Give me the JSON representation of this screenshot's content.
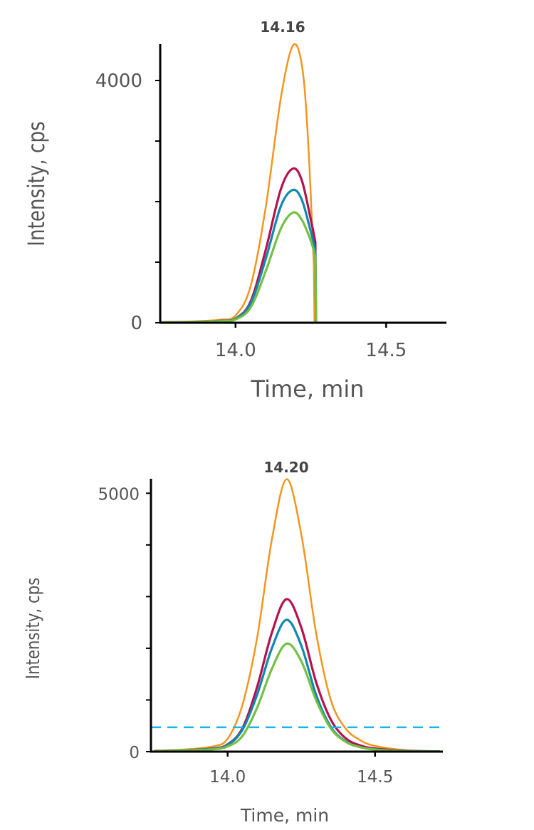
{
  "colors": {
    "orange": "#f7941d",
    "magenta": "#b5124f",
    "blue": "#0f88b0",
    "green": "#74c043",
    "threshold": "#1ab3e6",
    "axis": "#000000",
    "text": "#555555"
  },
  "chart_data": [
    {
      "type": "line",
      "annotation": "14.16",
      "xlabel": "Time, min",
      "ylabel": "Intensity, cps",
      "xlim": [
        13.75,
        14.7
      ],
      "ylim": [
        0,
        4600
      ],
      "xticks": [
        {
          "value": 14.0,
          "label": "14.0"
        },
        {
          "value": 14.5,
          "label": "14.5"
        }
      ],
      "yticks": [
        {
          "value": 0,
          "label": "0"
        },
        {
          "value": 1000,
          "label": ""
        },
        {
          "value": 2000,
          "label": ""
        },
        {
          "value": 3000,
          "label": ""
        },
        {
          "value": 4000,
          "label": "4000"
        }
      ],
      "grid": false,
      "series": [
        {
          "color": "orange",
          "x": [
            13.75,
            13.85,
            13.95,
            14.0,
            14.05,
            14.1,
            14.15,
            14.19,
            14.22,
            14.24,
            14.26,
            14.262
          ],
          "y": [
            10,
            20,
            50,
            120,
            600,
            1900,
            3700,
            4575,
            4260,
            3090,
            940,
            0
          ]
        },
        {
          "color": "magenta",
          "x": [
            13.75,
            13.85,
            13.95,
            14.0,
            14.05,
            14.1,
            14.15,
            14.19,
            14.22,
            14.25,
            14.265,
            14.267
          ],
          "y": [
            5,
            10,
            30,
            70,
            350,
            1200,
            2200,
            2545,
            2350,
            1700,
            1330,
            0
          ]
        },
        {
          "color": "blue",
          "x": [
            13.75,
            13.85,
            13.95,
            14.0,
            14.05,
            14.1,
            14.15,
            14.19,
            14.22,
            14.25,
            14.265,
            14.267
          ],
          "y": [
            5,
            10,
            30,
            65,
            320,
            1050,
            1920,
            2193,
            2030,
            1500,
            1180,
            0
          ]
        },
        {
          "color": "green",
          "x": [
            13.75,
            13.85,
            13.95,
            14.0,
            14.05,
            14.1,
            14.15,
            14.19,
            14.22,
            14.25,
            14.265,
            14.267
          ],
          "y": [
            5,
            10,
            25,
            55,
            250,
            850,
            1550,
            1818,
            1700,
            1350,
            1090,
            0
          ]
        }
      ]
    },
    {
      "type": "line",
      "annotation": "14.20",
      "xlabel": "Time, min",
      "ylabel": "Intensity, cps",
      "xlim": [
        13.74,
        14.73
      ],
      "ylim": [
        0,
        5280
      ],
      "xticks": [
        {
          "value": 14.0,
          "label": "14.0"
        },
        {
          "value": 14.5,
          "label": "14.5"
        }
      ],
      "yticks": [
        {
          "value": 0,
          "label": "0"
        },
        {
          "value": 1000,
          "label": ""
        },
        {
          "value": 2000,
          "label": ""
        },
        {
          "value": 3000,
          "label": ""
        },
        {
          "value": 4000,
          "label": ""
        },
        {
          "value": 5000,
          "label": "5000"
        }
      ],
      "grid": false,
      "threshold": 470,
      "series": [
        {
          "color": "orange",
          "x": [
            13.75,
            13.85,
            13.95,
            14.0,
            14.05,
            14.1,
            14.15,
            14.2,
            14.25,
            14.3,
            14.35,
            14.4,
            14.45,
            14.5,
            14.6,
            14.72
          ],
          "y": [
            20,
            40,
            100,
            250,
            900,
            2200,
            4100,
            5270,
            4200,
            2300,
            1000,
            450,
            220,
            110,
            30,
            5
          ]
        },
        {
          "color": "magenta",
          "x": [
            13.75,
            13.85,
            13.95,
            14.0,
            14.05,
            14.1,
            14.15,
            14.2,
            14.25,
            14.3,
            14.35,
            14.4,
            14.45,
            14.5,
            14.6,
            14.72
          ],
          "y": [
            10,
            25,
            60,
            140,
            450,
            1250,
            2300,
            2950,
            2400,
            1350,
            620,
            260,
            120,
            60,
            15,
            3
          ]
        },
        {
          "color": "blue",
          "x": [
            13.75,
            13.85,
            13.95,
            14.0,
            14.05,
            14.1,
            14.15,
            14.2,
            14.25,
            14.3,
            14.35,
            14.4,
            14.45,
            14.5,
            14.6,
            14.72
          ],
          "y": [
            10,
            25,
            55,
            130,
            420,
            1100,
            2000,
            2550,
            2050,
            1100,
            480,
            200,
            90,
            45,
            12,
            3
          ]
        },
        {
          "color": "green",
          "x": [
            13.75,
            13.85,
            13.95,
            14.0,
            14.05,
            14.1,
            14.15,
            14.2,
            14.25,
            14.3,
            14.35,
            14.4,
            14.45,
            14.5,
            14.6,
            14.72
          ],
          "y": [
            10,
            20,
            45,
            100,
            300,
            850,
            1600,
            2090,
            1750,
            1000,
            450,
            190,
            85,
            40,
            10,
            3
          ]
        }
      ]
    }
  ]
}
